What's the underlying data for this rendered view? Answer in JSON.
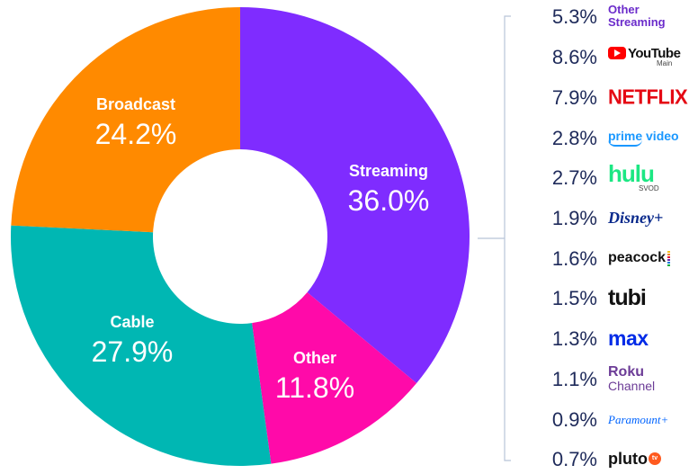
{
  "chart_data": {
    "type": "pie",
    "categories": [
      "Streaming",
      "Other",
      "Cable",
      "Broadcast"
    ],
    "values": [
      36.0,
      11.8,
      27.9,
      24.2
    ],
    "value_labels": [
      "36.0%",
      "11.8%",
      "27.9%",
      "24.2%"
    ],
    "colors": [
      "#7f2cff",
      "#ff0aa9",
      "#00b7b3",
      "#ff8a00"
    ],
    "donut": true,
    "start": "top, clockwise",
    "breakdown": {
      "parent": "Streaming",
      "items": [
        {
          "name": "Other Streaming",
          "line1": "Other",
          "line2": "Streaming",
          "value": 5.3,
          "label": "5.3%"
        },
        {
          "name": "YouTube",
          "line1": "YouTube",
          "line2": "Main",
          "value": 8.6,
          "label": "8.6%"
        },
        {
          "name": "NETFLIX",
          "line1": "NETFLIX",
          "value": 7.9,
          "label": "7.9%"
        },
        {
          "name": "prime video",
          "line1": "prime video",
          "value": 2.8,
          "label": "2.8%"
        },
        {
          "name": "hulu",
          "line1": "hulu",
          "line2": "SVOD",
          "value": 2.7,
          "label": "2.7%"
        },
        {
          "name": "Disney+",
          "line1": "Disney+",
          "value": 1.9,
          "label": "1.9%"
        },
        {
          "name": "peacock",
          "line1": "peacock",
          "value": 1.6,
          "label": "1.6%"
        },
        {
          "name": "tubi",
          "line1": "tubi",
          "value": 1.5,
          "label": "1.5%"
        },
        {
          "name": "max",
          "line1": "max",
          "value": 1.3,
          "label": "1.3%"
        },
        {
          "name": "Roku Channel",
          "line1": "Roku",
          "line2": "Channel",
          "value": 1.1,
          "label": "1.1%"
        },
        {
          "name": "Paramount+",
          "line1": "Paramount+",
          "value": 0.9,
          "label": "0.9%"
        },
        {
          "name": "pluto tv",
          "line1": "pluto",
          "line2": "tv",
          "value": 0.7,
          "label": "0.7%"
        }
      ]
    },
    "peacock_dot_colors": [
      "#f6c321",
      "#f48322",
      "#e41c3a",
      "#6b2bb1",
      "#0a7bd7",
      "#05ac3f"
    ]
  }
}
